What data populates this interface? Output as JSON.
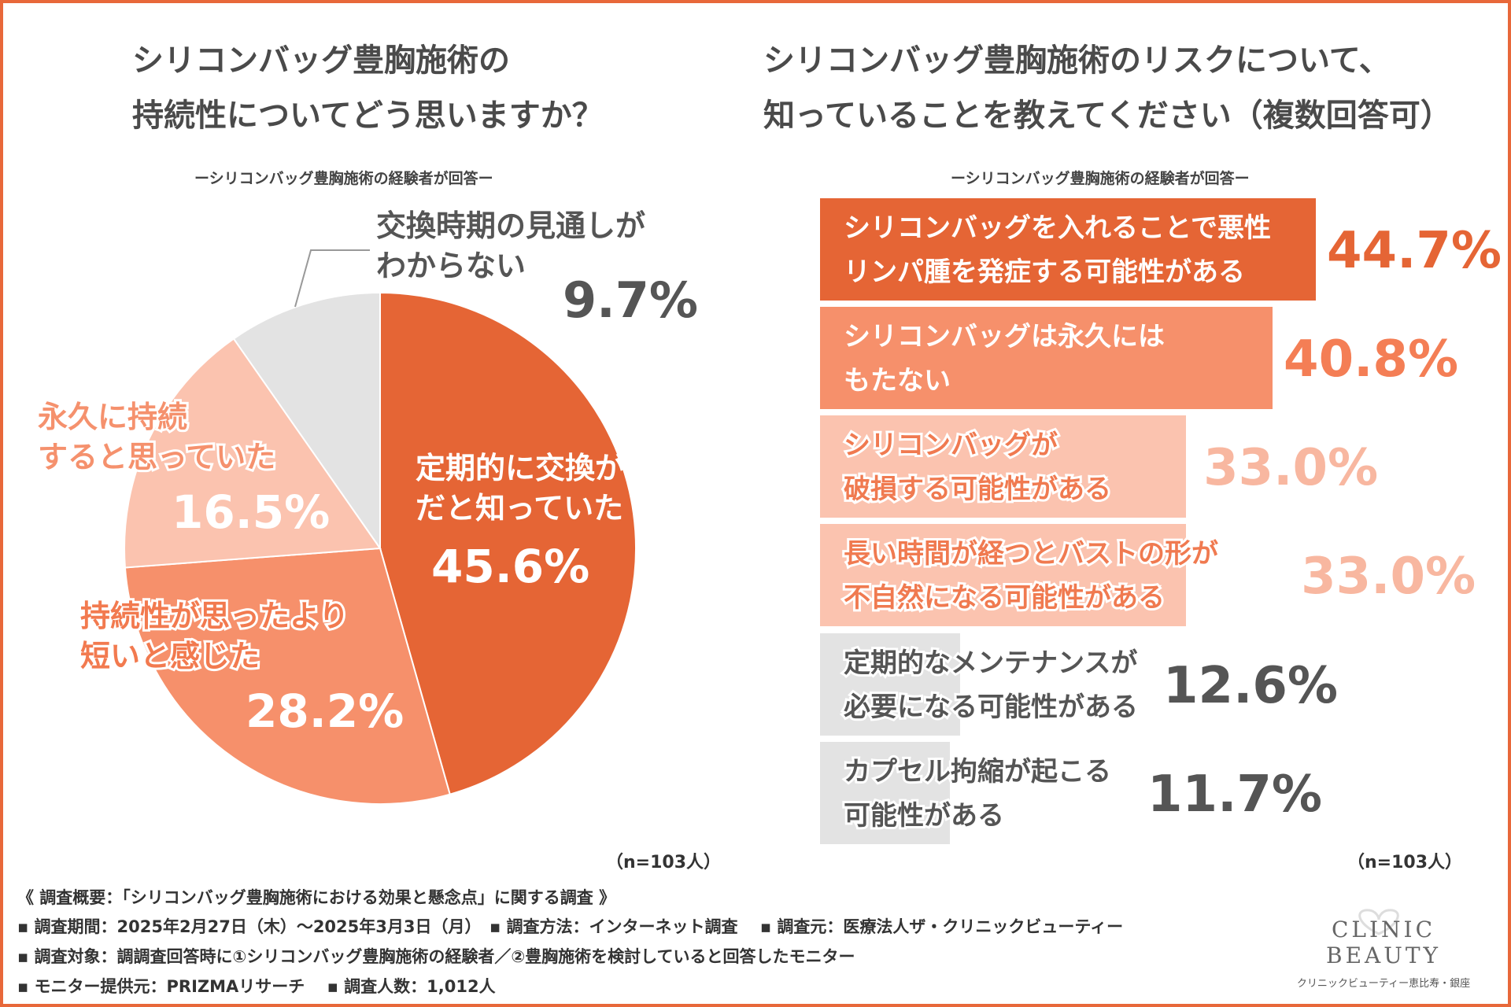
{
  "left_panel": {
    "title_line1": "シリコンバッグ豊胸施術の",
    "title_line2": "持続性についてどう思いますか？",
    "subtitle": "ーシリコンバッグ豊胸施術の経験者が回答ー",
    "n_label": "（n=103人）"
  },
  "right_panel": {
    "title_line1": "シリコンバッグ豊胸施術のリスクについて、",
    "title_line2": "知っていることを教えてください（複数回答可）",
    "subtitle": "ーシリコンバッグ豊胸施術の経験者が回答ー",
    "n_label": "（n=103人）"
  },
  "chart_data": [
    {
      "type": "pie",
      "title": "シリコンバッグ豊胸施術の持続性についてどう思いますか？",
      "slices": [
        {
          "label_line1": "定期的に交換が必要",
          "label_line2": "だと知っていた",
          "value": 45.6,
          "value_text": "45.6%",
          "color": "#e56535"
        },
        {
          "label_line1": "持続性が思ったより",
          "label_line2": "短いと感じた",
          "value": 28.2,
          "value_text": "28.2%",
          "color": "#f6906b"
        },
        {
          "label_line1": "永久に持続",
          "label_line2": "すると思っていた",
          "value": 16.5,
          "value_text": "16.5%",
          "color": "#fbc3af"
        },
        {
          "label_line1": "交換時期の見通しが",
          "label_line2": "わからない",
          "value": 9.7,
          "value_text": "9.7%",
          "color": "#e3e3e3"
        }
      ]
    },
    {
      "type": "bar",
      "orientation": "horizontal",
      "title": "シリコンバッグ豊胸施術のリスクについて、知っていることを教えてください（複数回答可）",
      "xlim": [
        0,
        60
      ],
      "bars": [
        {
          "label_line1": "シリコンバッグを入れることで悪性",
          "label_line2": "リンパ腫を発症する可能性がある",
          "value": 44.7,
          "value_text": "44.7%",
          "color": "#e56535",
          "text_color": "#ffffff",
          "pct_color": "#e56535"
        },
        {
          "label_line1": "シリコンバッグは永久には",
          "label_line2": "もたない",
          "value": 40.8,
          "value_text": "40.8%",
          "color": "#f6906b",
          "text_color": "#ffffff",
          "pct_color": "#f47e55"
        },
        {
          "label_line1": "シリコンバッグが",
          "label_line2": "破損する可能性がある",
          "value": 33.0,
          "value_text": "33.0%",
          "color": "#fbc3af",
          "text_color": "#f07a50",
          "pct_color": "#f8b7a0"
        },
        {
          "label_line1": "長い時間が経つとバストの形が",
          "label_line2": "不自然になる可能性がある",
          "value": 33.0,
          "value_text": "33.0%",
          "color": "#fbc3af",
          "text_color": "#f07a50",
          "pct_color": "#f8b7a0"
        },
        {
          "label_line1": "定期的なメンテナンスが",
          "label_line2": "必要になる可能性がある",
          "value": 12.6,
          "value_text": "12.6%",
          "color": "#e3e3e3",
          "text_color": "#555555",
          "pct_color": "#555555"
        },
        {
          "label_line1": "カプセル拘縮が起こる",
          "label_line2": "可能性がある",
          "value": 11.7,
          "value_text": "11.7%",
          "color": "#e3e3e3",
          "text_color": "#555555",
          "pct_color": "#555555"
        }
      ]
    }
  ],
  "footer": {
    "line1": "《 調査概要：「シリコンバッグ豊胸施術における効果と懸念点」に関する調査 》",
    "line2": "▪ 調査期間：2025年2月27日（木）～2025年3月3日（月）　▪ 調査方法：インターネット調査　 ▪ 調査元：医療法人ザ・クリニックビューティー",
    "line3": "▪ 調査対象：調調査回答時に①シリコンバッグ豊胸施術の経験者／②豊胸施術を検討していると回答したモニター",
    "line4": "▪ モニター提供元：PRIZMAリサーチ　 ▪ 調査人数：1,012人"
  },
  "logo": {
    "name": "CLINIC BEAUTY",
    "subtitle": "クリニックビューティー恵比寿・銀座"
  },
  "colors": {
    "border": "#e8683a"
  }
}
